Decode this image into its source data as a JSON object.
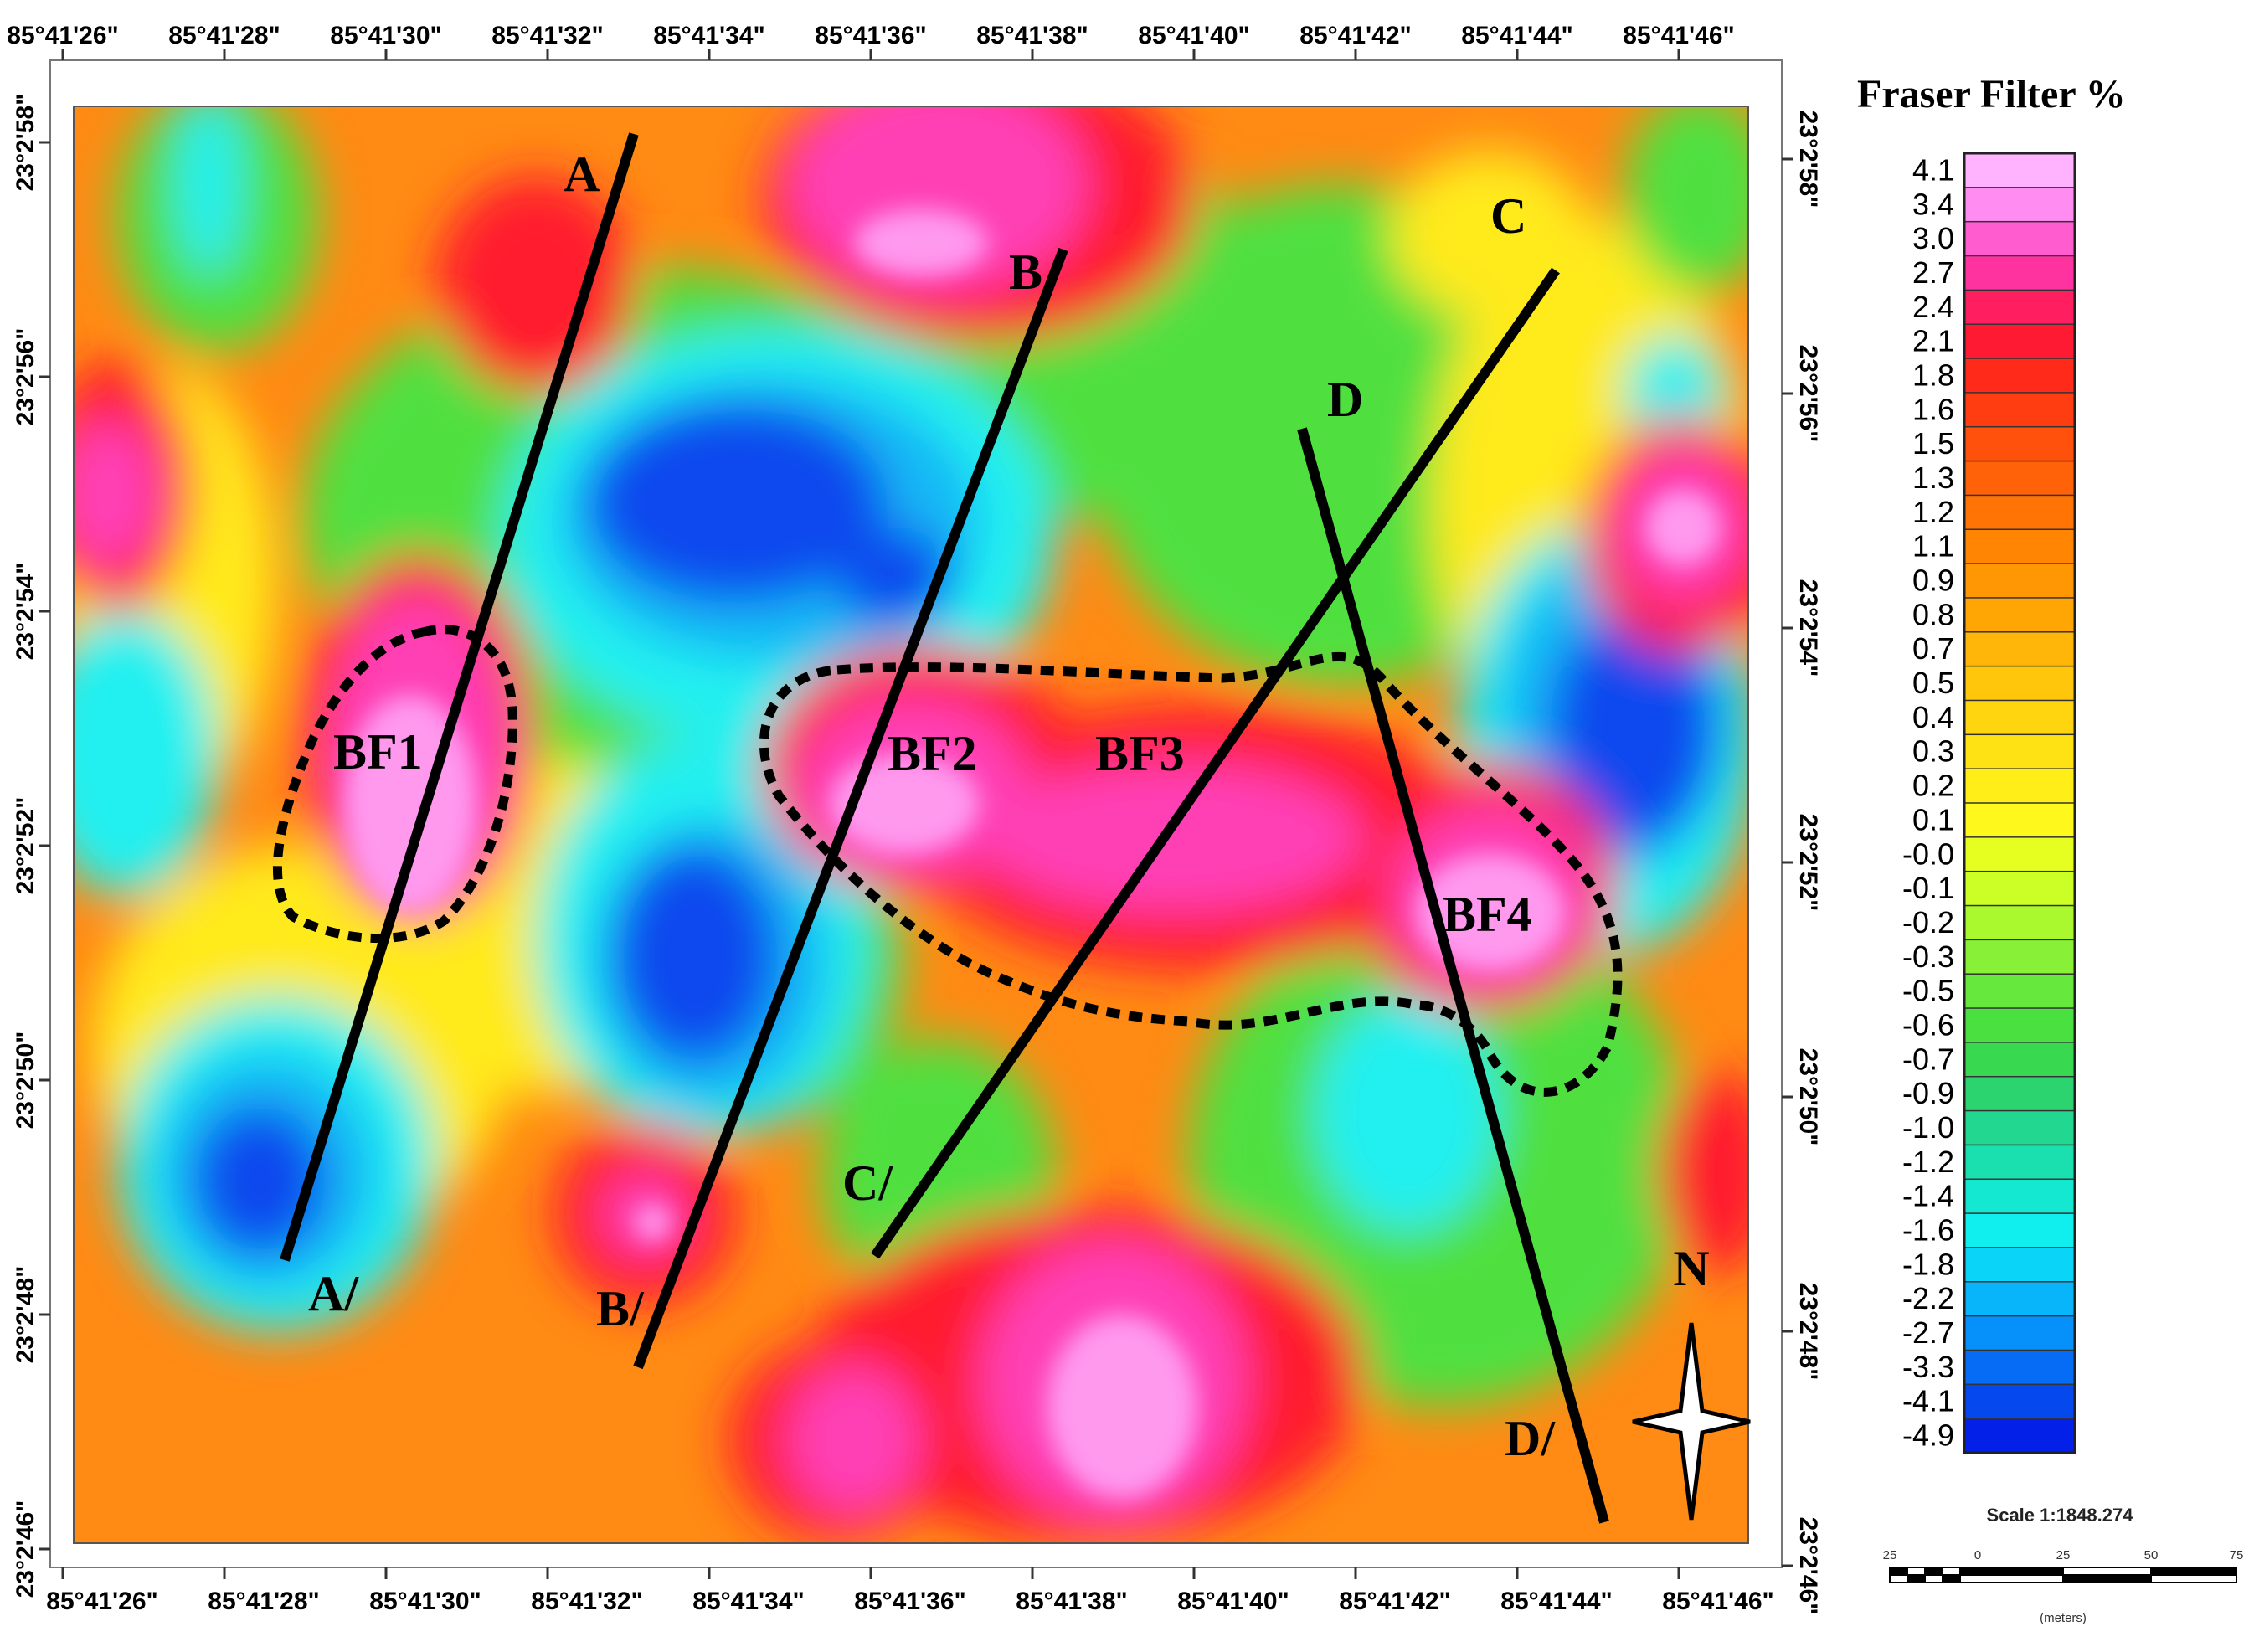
{
  "map": {
    "top_lon_ticks": [
      "85°41'26\"",
      "85°41'28\"",
      "85°41'30\"",
      "85°41'32\"",
      "85°41'34\"",
      "85°41'36\"",
      "85°41'38\"",
      "85°41'40\"",
      "85°41'42\"",
      "85°41'44\"",
      "85°41'46\""
    ],
    "bottom_lon_ticks": [
      "85°41'26\"",
      "85°41'28\"",
      "85°41'30\"",
      "85°41'32\"",
      "85°41'34\"",
      "85°41'36\"",
      "85°41'38\"",
      "85°41'40\"",
      "85°41'42\"",
      "85°41'44\"",
      "85°41'46\""
    ],
    "left_lat_ticks": [
      "23°2'58\"",
      "23°2'56\"",
      "23°2'54\"",
      "23°2'52\"",
      "23°2'50\"",
      "23°2'48\"",
      "23°2'46\""
    ],
    "right_lat_ticks": [
      "23°2'58\"",
      "23°2'56\"",
      "23°2'54\"",
      "23°2'52\"",
      "23°2'50\"",
      "23°2'48\"",
      "23°2'46\""
    ],
    "profile_labels": {
      "A": "A",
      "A_prime": "A/",
      "B": "B",
      "B_prime": "B/",
      "C": "C",
      "C_prime": "C/",
      "D": "D",
      "D_prime": "D/"
    },
    "zone_labels": {
      "BF1": "BF1",
      "BF2": "BF2",
      "BF3": "BF3",
      "BF4": "BF4"
    },
    "north_label": "N"
  },
  "legend": {
    "title": "Fraser Filter %",
    "values": [
      "4.1",
      "3.4",
      "3.0",
      "2.7",
      "2.4",
      "2.1",
      "1.8",
      "1.6",
      "1.5",
      "1.3",
      "1.2",
      "1.1",
      "0.9",
      "0.8",
      "0.7",
      "0.5",
      "0.4",
      "0.3",
      "0.2",
      "0.1",
      "-0.0",
      "-0.1",
      "-0.2",
      "-0.3",
      "-0.5",
      "-0.6",
      "-0.7",
      "-0.9",
      "-1.0",
      "-1.2",
      "-1.4",
      "-1.6",
      "-1.8",
      "-2.2",
      "-2.7",
      "-3.3",
      "-4.1",
      "-4.9"
    ],
    "colors": [
      "#ffb3ff",
      "#ff8cf0",
      "#ff5ccf",
      "#ff33a0",
      "#ff1f60",
      "#ff1a33",
      "#ff2a1a",
      "#ff3d10",
      "#ff500c",
      "#ff6208",
      "#ff7405",
      "#ff8503",
      "#ff9603",
      "#ffa605",
      "#ffb608",
      "#ffc60c",
      "#ffd510",
      "#ffe214",
      "#ffee18",
      "#fff81c",
      "#e6ff20",
      "#ccff26",
      "#aaf82e",
      "#88f036",
      "#66e83c",
      "#4ae040",
      "#38d850",
      "#2cd470",
      "#22d890",
      "#1ae0b0",
      "#14e8d0",
      "#10eeee",
      "#0ad4f8",
      "#08b4fa",
      "#0690fa",
      "#066cf6",
      "#0448ee",
      "#0220e8"
    ]
  },
  "scale": {
    "text": "Scale 1:1848.274",
    "ticks": [
      "25",
      "0",
      "25",
      "50",
      "75"
    ],
    "unit": "(meters)"
  },
  "colors": {
    "pink": "#ff99ee",
    "magenta": "#ff3fb5",
    "red": "#ff1f2f",
    "orange": "#ff8a14",
    "yellow": "#ffea1c",
    "green": "#4fe040",
    "cyan": "#22f0f0",
    "light_blue": "#18b8f5",
    "blue": "#0a48ee",
    "deep_blue": "#0520e0"
  }
}
